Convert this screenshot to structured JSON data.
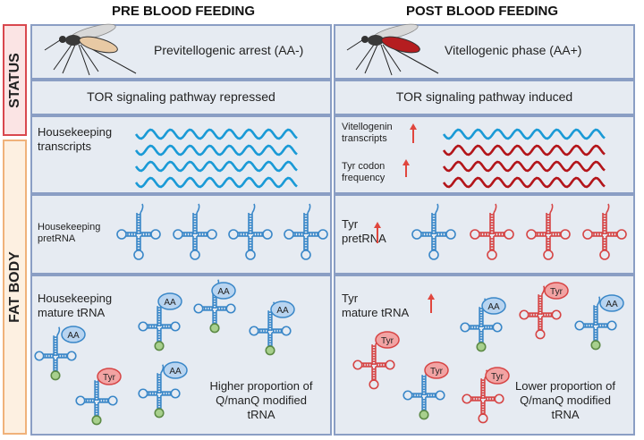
{
  "columns": {
    "pre": "PRE BLOOD FEEDING",
    "post": "POST BLOOD FEEDING"
  },
  "side_labels": {
    "status": "STATUS",
    "fat_body": "FAT BODY"
  },
  "status_row": {
    "pre": "Previtellogenic arrest (AA-)",
    "post": "Vitellogenic phase (AA+)"
  },
  "tor_row": {
    "pre": "TOR signaling pathway repressed",
    "post": "TOR signaling pathway induced"
  },
  "transcripts_row": {
    "pre_label": "Housekeeping\ntranscripts",
    "post_label_1": "Vitellogenin\ntranscripts",
    "post_label_2": "Tyr codon\nfrequency"
  },
  "pretrna_row": {
    "pre_label": "Housekeeping\npretRNA",
    "post_label": "Tyr\npretRNA"
  },
  "mature_row": {
    "pre_label": "Housekeeping\nmature tRNA",
    "post_label": "Tyr\nmature tRNA",
    "pre_note": "Higher proportion of\nQ/manQ modified\ntRNA",
    "post_note": "Lower proportion of\nQ/manQ modified\ntRNA",
    "aa_tag": "AA",
    "tyr_tag": "Tyr"
  },
  "colors": {
    "panel_bg": "#e6ebf2",
    "panel_border": "#8a9ec4",
    "status_accent": "#d9484e",
    "fatbody_accent": "#f0b27a",
    "housekeeping_wave": "#1a9ad6",
    "vitellogenin_wave": "#b3151a",
    "trna_blue": "#3a87c8",
    "trna_red": "#d64545",
    "aa_tag_fill": "#b8d4f0",
    "tyr_tag_fill": "#f2a3a3",
    "node_green": "#a8d08d",
    "arrow_red": "#e0463e"
  },
  "icons": [
    "mosquito-unfed-icon",
    "mosquito-fed-icon",
    "up-arrow-icon",
    "trna-cloverleaf-icon"
  ]
}
